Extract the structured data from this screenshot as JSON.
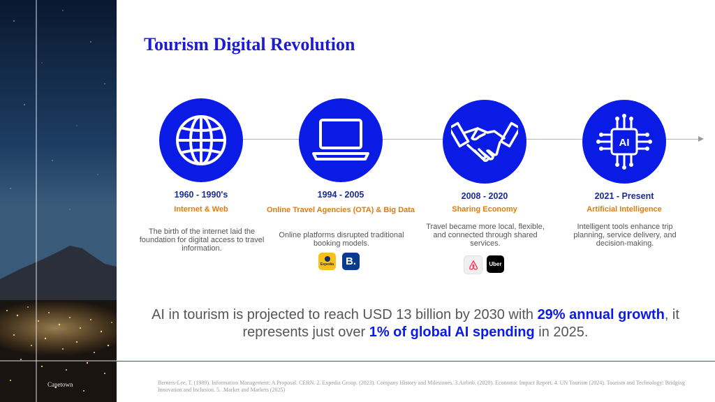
{
  "sidebar": {
    "caption": "Capetown"
  },
  "title": "Tourism Digital Revolution",
  "eras": [
    {
      "period": "1960 - 1990's",
      "label": "Internet & Web",
      "description": "The birth of the internet laid the foundation for digital access to travel information.",
      "icon": "globe-icon"
    },
    {
      "period": "1994 - 2005",
      "label": "Online Travel Agencies (OTA) & Big Data",
      "description": "Online platforms disrupted traditional booking models.",
      "icon": "laptop-icon",
      "logos": [
        {
          "name": "expedia-logo",
          "text": "Expedia"
        },
        {
          "name": "booking-logo",
          "text": "B."
        }
      ]
    },
    {
      "period": "2008 - 2020",
      "label": "Sharing Economy",
      "description": "Travel became more local, flexible, and connected through shared services.",
      "icon": "handshake-icon",
      "logos": [
        {
          "name": "airbnb-logo",
          "text": ""
        },
        {
          "name": "uber-logo",
          "text": "Uber"
        }
      ]
    },
    {
      "period": "2021 - Present",
      "label": "Artificial Intelligence",
      "description": "Intelligent tools enhance trip planning, service delivery, and decision-making.",
      "icon": "ai-chip-icon",
      "chip_text": "AI"
    }
  ],
  "summary": {
    "part1": "AI in tourism is projected to reach USD 13 billion by 2030 with ",
    "highlight1": "29% annual growth",
    "part2": ", it represents just over ",
    "highlight2": "1% of global AI spending",
    "part3": " in 2025."
  },
  "references": "Berners-Lee, T. (1989). Information Management: A Proposal. CERN. 2. Expedia Group. (2023). Company History and Milestones. 3.Airbnb. (2020). Economic Impact Report. 4. UN Tourism (2024). Tourism and Technology: Bridging Innovation and Inclusion. 5. .Market and Markets (2025)",
  "colors": {
    "accent_blue": "#0a1be6",
    "title_blue": "#1b1bd4",
    "orange": "#e07b10"
  }
}
